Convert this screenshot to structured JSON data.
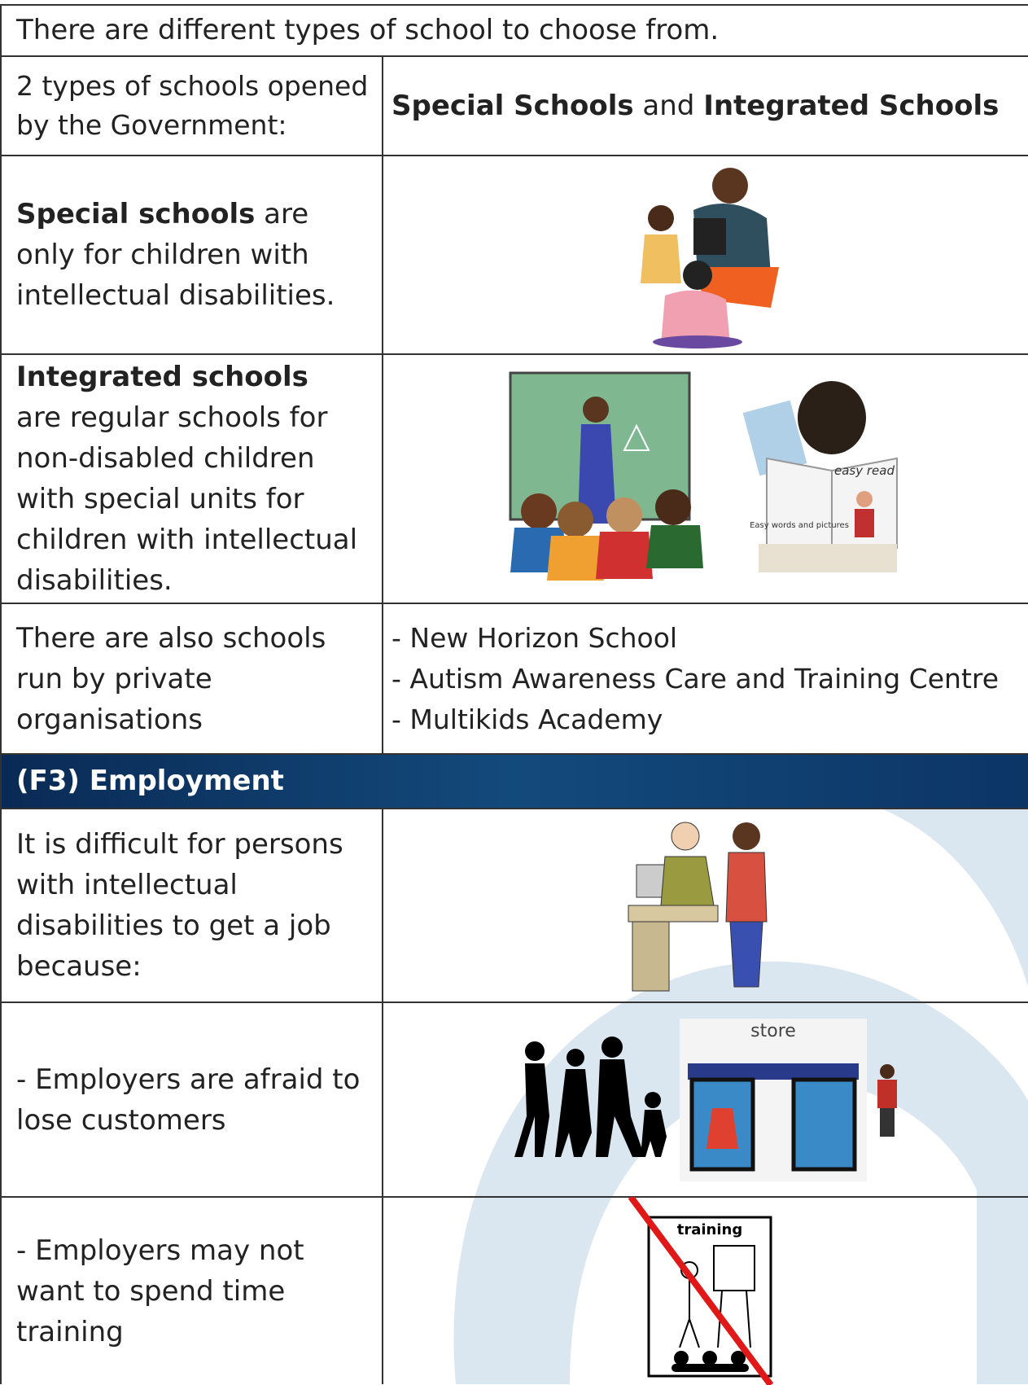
{
  "intro": "There are different types of school to choose from.",
  "gov_row": {
    "label": "2 types of schools opened by the Government:",
    "answer": {
      "first": "Special Schools",
      "joiner": "and",
      "second": "Integrated Schools"
    }
  },
  "special_row": {
    "term": "Special schools",
    "text": "are only for children with intellectual disabilities."
  },
  "integrated_row": {
    "term": "Integrated schools",
    "text": "are regular schools for non-disabled children with special units for children with intellectual disabilities.",
    "image_labels": {
      "book_title": "easy read",
      "book_note": "Easy words and pictures"
    }
  },
  "private_row": {
    "label": "There are also schools run by private organisations",
    "schools": [
      "- New Horizon School",
      "- Autism Awareness Care and Training Centre",
      "- Multikids Academy"
    ]
  },
  "section": {
    "title": "(F3) Employment"
  },
  "employment_rows": [
    {
      "text": "It is difficult for persons with intellectual disabilities to get a job because:"
    },
    {
      "text": "- Employers are afraid to lose customers",
      "image_label": "store"
    },
    {
      "text": "- Employers may not want to spend time training",
      "image_label": "training"
    }
  ]
}
